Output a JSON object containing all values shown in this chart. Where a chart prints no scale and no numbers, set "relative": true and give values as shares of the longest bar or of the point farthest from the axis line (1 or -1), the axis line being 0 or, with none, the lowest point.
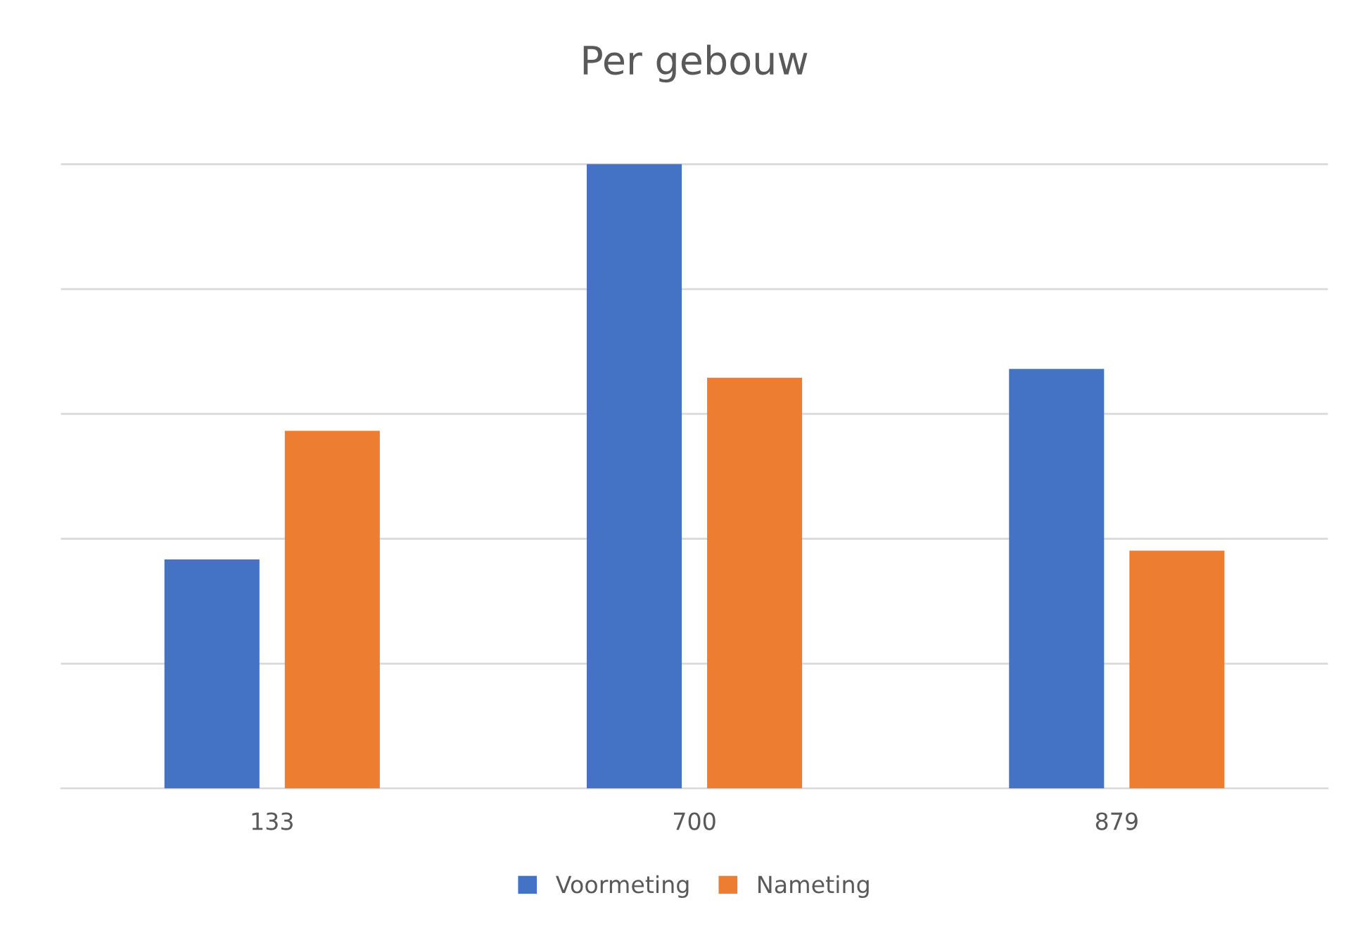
{
  "chart_data": {
    "type": "bar",
    "title": "Per gebouw",
    "categories": [
      "133",
      "700",
      "879"
    ],
    "relative": true,
    "grid": "y",
    "legend": "bottom",
    "series": [
      {
        "name": "Voormeting",
        "color": "#4472c4",
        "values": [
          0.367,
          1,
          0.672
        ]
      },
      {
        "name": "Nameting",
        "color": "#ed7d31",
        "values": [
          0.573,
          0.658,
          0.381
        ]
      }
    ]
  }
}
